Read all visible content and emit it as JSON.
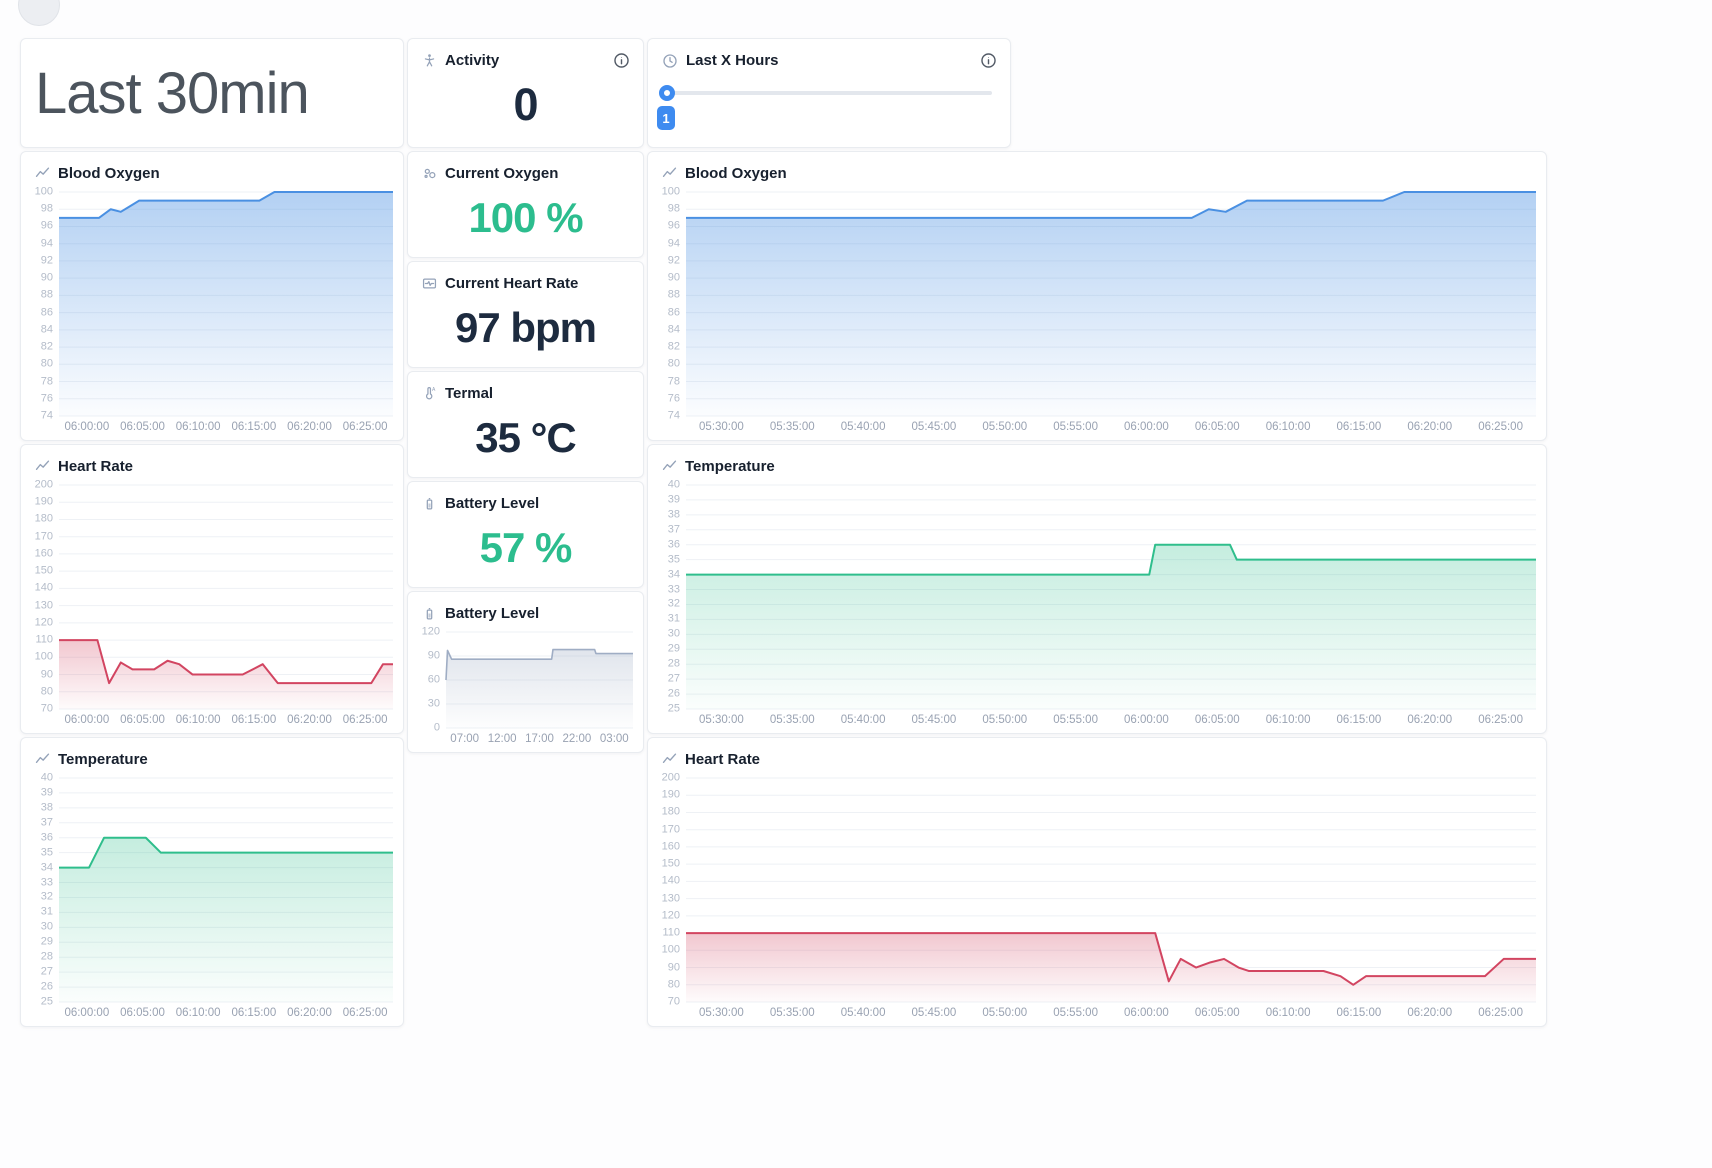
{
  "header": {
    "time_range_title": "Last 30min"
  },
  "activity": {
    "label": "Activity",
    "value": "0"
  },
  "last_x_hours": {
    "label": "Last X Hours",
    "slider_value": "1"
  },
  "stats": {
    "current_oxygen": {
      "label": "Current Oxygen",
      "value": "100 %"
    },
    "current_heart_rate": {
      "label": "Current Heart Rate",
      "value": "97 bpm"
    },
    "termal": {
      "label": "Termal",
      "value": "35 °C"
    },
    "battery_level": {
      "label": "Battery Level",
      "value": "57 %"
    }
  },
  "colors": {
    "accent_green": "#2cbd8e",
    "navy": "#1d2b3f",
    "chart_blue": "#4a90e2",
    "chart_red": "#d24561",
    "chart_green": "#2fbe8c",
    "battery_gray": "#9fadc4",
    "slider_blue": "#3e8bf0"
  },
  "charts": {
    "left_blood_oxygen": {
      "type": "area",
      "title": "Blood Oxygen",
      "color": "#4a90e2",
      "fill_top": 0.42,
      "stroke": 2,
      "ymin": 74,
      "ymax": 100,
      "y_ticks": [
        100,
        98,
        96,
        94,
        92,
        90,
        88,
        86,
        84,
        82,
        80,
        78,
        76,
        74
      ],
      "x_labels": [
        "06:00:00",
        "06:05:00",
        "06:10:00",
        "06:15:00",
        "06:20:00",
        "06:25:00"
      ],
      "points": [
        [
          0,
          97
        ],
        [
          0.12,
          97
        ],
        [
          0.155,
          98
        ],
        [
          0.185,
          97.7
        ],
        [
          0.24,
          99
        ],
        [
          0.6,
          99
        ],
        [
          0.645,
          100
        ],
        [
          1,
          100
        ]
      ]
    },
    "left_heart_rate": {
      "type": "area",
      "title": "Heart Rate",
      "color": "#d24561",
      "fill_top": 0.3,
      "stroke": 2,
      "ymin": 70,
      "ymax": 200,
      "y_ticks": [
        200,
        190,
        180,
        170,
        160,
        150,
        140,
        130,
        120,
        110,
        100,
        90,
        80,
        70
      ],
      "x_labels": [
        "06:00:00",
        "06:05:00",
        "06:10:00",
        "06:15:00",
        "06:20:00",
        "06:25:00"
      ],
      "points": [
        [
          0,
          110
        ],
        [
          0.115,
          110
        ],
        [
          0.15,
          85
        ],
        [
          0.185,
          97
        ],
        [
          0.22,
          93
        ],
        [
          0.285,
          93
        ],
        [
          0.325,
          98
        ],
        [
          0.36,
          96
        ],
        [
          0.4,
          90
        ],
        [
          0.55,
          90
        ],
        [
          0.61,
          96
        ],
        [
          0.655,
          85
        ],
        [
          0.935,
          85
        ],
        [
          0.97,
          96
        ],
        [
          1,
          96
        ]
      ]
    },
    "left_temperature": {
      "type": "area",
      "title": "Temperature",
      "color": "#2fbe8c",
      "fill_top": 0.28,
      "stroke": 2,
      "ymin": 25,
      "ymax": 40,
      "y_ticks": [
        40,
        39,
        38,
        37,
        36,
        35,
        34,
        33,
        32,
        31,
        30,
        29,
        28,
        27,
        26,
        25
      ],
      "x_labels": [
        "06:00:00",
        "06:05:00",
        "06:10:00",
        "06:15:00",
        "06:20:00",
        "06:25:00"
      ],
      "points": [
        [
          0,
          34
        ],
        [
          0.09,
          34
        ],
        [
          0.135,
          36
        ],
        [
          0.26,
          36
        ],
        [
          0.305,
          35
        ],
        [
          1,
          35
        ]
      ]
    },
    "battery_history": {
      "type": "area",
      "title": "Battery Level",
      "color": "#9fadc4",
      "fill_top": 0.32,
      "stroke": 1.6,
      "ymin": 0,
      "ymax": 120,
      "y_ticks": [
        120,
        90,
        60,
        30,
        0
      ],
      "x_labels": [
        "07:00",
        "12:00",
        "17:00",
        "22:00",
        "03:00"
      ],
      "points": [
        [
          0,
          60
        ],
        [
          0.008,
          97
        ],
        [
          0.03,
          86
        ],
        [
          0.565,
          86
        ],
        [
          0.572,
          98
        ],
        [
          0.795,
          98
        ],
        [
          0.802,
          93
        ],
        [
          1,
          93
        ]
      ]
    },
    "right_blood_oxygen": {
      "type": "area",
      "title": "Blood Oxygen",
      "color": "#4a90e2",
      "fill_top": 0.42,
      "stroke": 2,
      "ymin": 74,
      "ymax": 100,
      "y_ticks": [
        100,
        98,
        96,
        94,
        92,
        90,
        88,
        86,
        84,
        82,
        80,
        78,
        76,
        74
      ],
      "x_labels": [
        "05:30:00",
        "05:35:00",
        "05:40:00",
        "05:45:00",
        "05:50:00",
        "05:55:00",
        "06:00:00",
        "06:05:00",
        "06:10:00",
        "06:15:00",
        "06:20:00",
        "06:25:00"
      ],
      "points": [
        [
          0,
          97
        ],
        [
          0.595,
          97
        ],
        [
          0.615,
          98
        ],
        [
          0.635,
          97.7
        ],
        [
          0.66,
          99
        ],
        [
          0.82,
          99
        ],
        [
          0.845,
          100
        ],
        [
          1,
          100
        ]
      ]
    },
    "right_temperature": {
      "type": "area",
      "title": "Temperature",
      "color": "#2fbe8c",
      "fill_top": 0.28,
      "stroke": 2,
      "ymin": 25,
      "ymax": 40,
      "y_ticks": [
        40,
        39,
        38,
        37,
        36,
        35,
        34,
        33,
        32,
        31,
        30,
        29,
        28,
        27,
        26,
        25
      ],
      "x_labels": [
        "05:30:00",
        "05:35:00",
        "05:40:00",
        "05:45:00",
        "05:50:00",
        "05:55:00",
        "06:00:00",
        "06:05:00",
        "06:10:00",
        "06:15:00",
        "06:20:00",
        "06:25:00"
      ],
      "points": [
        [
          0,
          34
        ],
        [
          0.545,
          34
        ],
        [
          0.552,
          36
        ],
        [
          0.64,
          36
        ],
        [
          0.648,
          35
        ],
        [
          1,
          35
        ]
      ]
    },
    "right_heart_rate": {
      "type": "area",
      "title": "Heart Rate",
      "color": "#d24561",
      "fill_top": 0.3,
      "stroke": 2,
      "ymin": 70,
      "ymax": 200,
      "y_ticks": [
        200,
        190,
        180,
        170,
        160,
        150,
        140,
        130,
        120,
        110,
        100,
        90,
        80,
        70
      ],
      "x_labels": [
        "05:30:00",
        "05:35:00",
        "05:40:00",
        "05:45:00",
        "05:50:00",
        "05:55:00",
        "06:00:00",
        "06:05:00",
        "06:10:00",
        "06:15:00",
        "06:20:00",
        "06:25:00"
      ],
      "points": [
        [
          0,
          110
        ],
        [
          0.552,
          110
        ],
        [
          0.568,
          82
        ],
        [
          0.582,
          95
        ],
        [
          0.6,
          90
        ],
        [
          0.617,
          93
        ],
        [
          0.633,
          95
        ],
        [
          0.65,
          90
        ],
        [
          0.662,
          88
        ],
        [
          0.75,
          88
        ],
        [
          0.77,
          85
        ],
        [
          0.785,
          80
        ],
        [
          0.8,
          85
        ],
        [
          0.94,
          85
        ],
        [
          0.962,
          95
        ],
        [
          1,
          95
        ]
      ]
    }
  }
}
